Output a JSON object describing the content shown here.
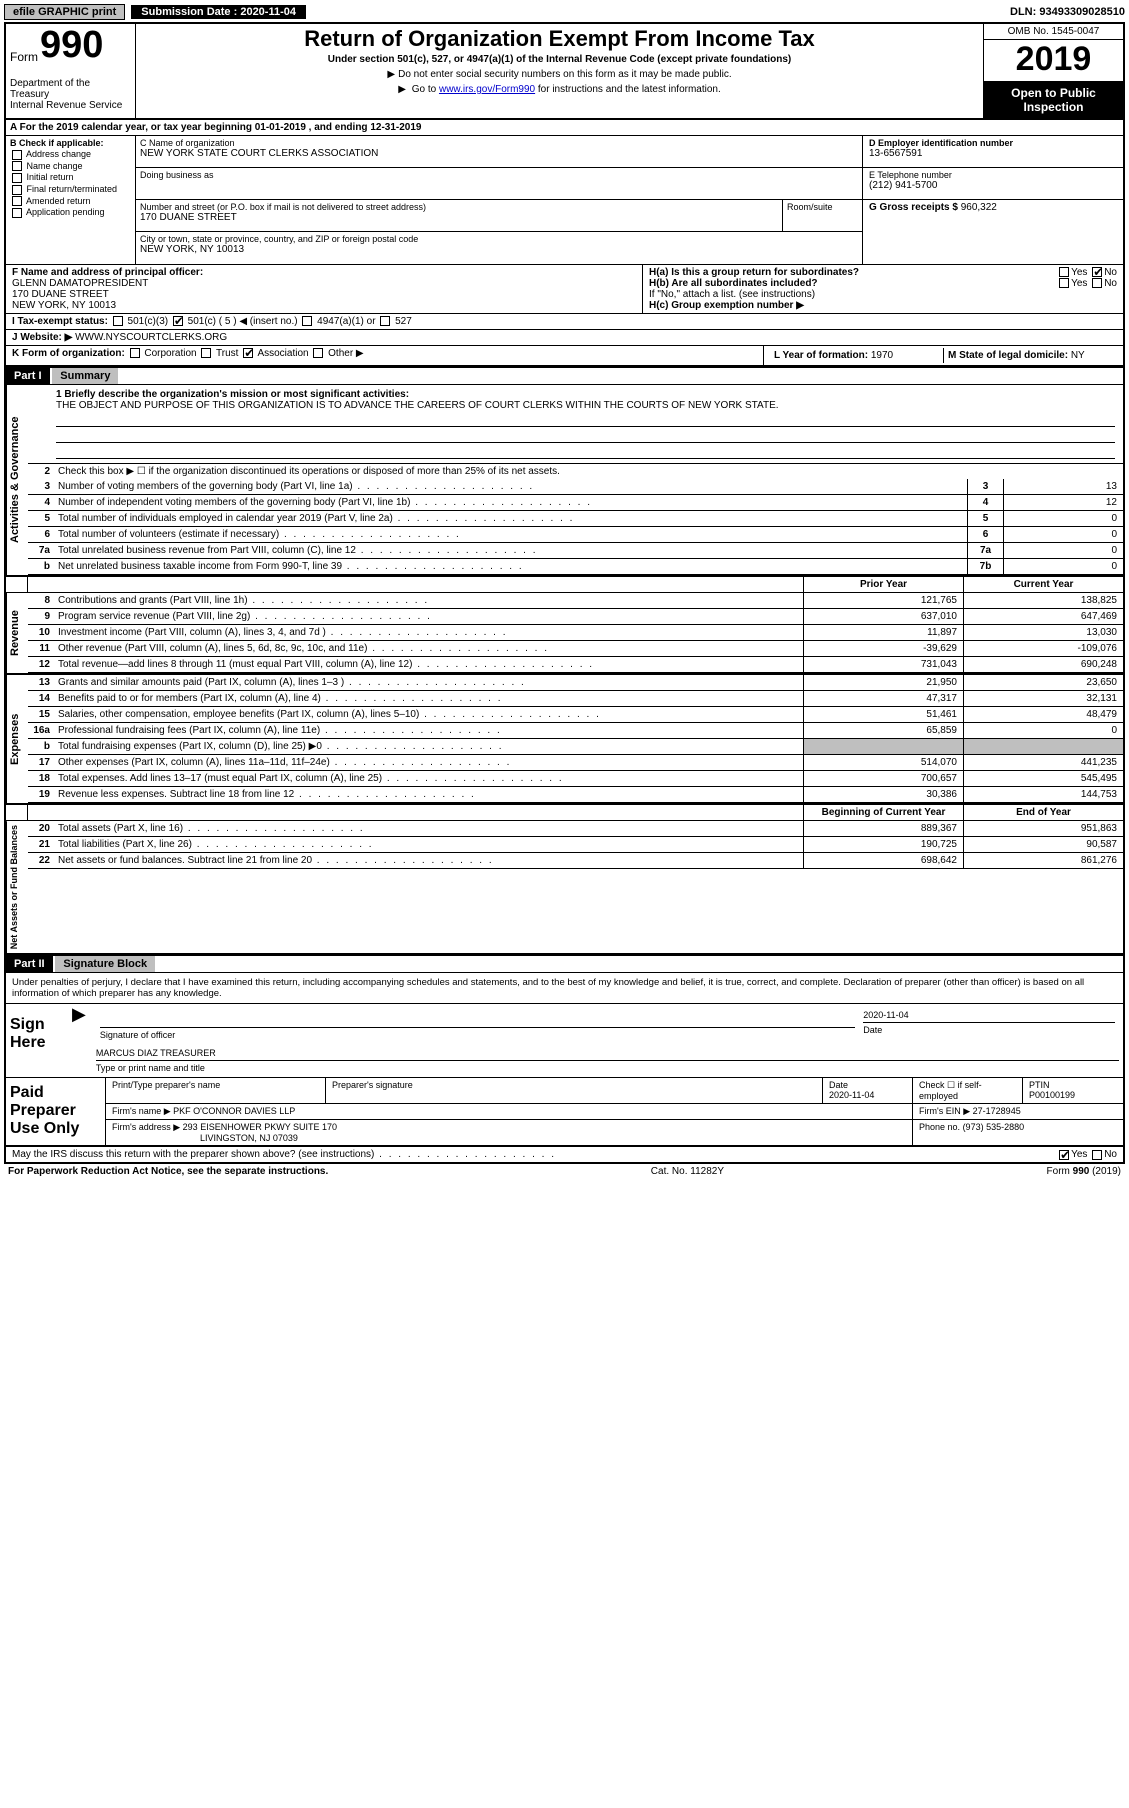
{
  "topbar": {
    "efile": "efile GRAPHIC print",
    "submission_label": "Submission Date :",
    "submission_date": "2020-11-04",
    "dln_label": "DLN:",
    "dln": "93493309028510"
  },
  "header": {
    "form_word": "Form",
    "form_num": "990",
    "dept": "Department of the Treasury\nInternal Revenue Service",
    "title": "Return of Organization Exempt From Income Tax",
    "subtitle": "Under section 501(c), 527, or 4947(a)(1) of the Internal Revenue Code (except private foundations)",
    "instr1": "Do not enter social security numbers on this form as it may be made public.",
    "instr2_pre": "Go to ",
    "instr2_link": "www.irs.gov/Form990",
    "instr2_post": " for instructions and the latest information.",
    "omb": "OMB No. 1545-0047",
    "year": "2019",
    "open_public": "Open to Public Inspection"
  },
  "row_a": "A For the 2019 calendar year, or tax year beginning 01-01-2019   , and ending 12-31-2019",
  "col_b": {
    "header": "B Check if applicable:",
    "items": [
      "Address change",
      "Name change",
      "Initial return",
      "Final return/terminated",
      "Amended return",
      "Application pending"
    ]
  },
  "col_c": {
    "name_label": "C Name of organization",
    "name": "NEW YORK STATE COURT CLERKS ASSOCIATION",
    "dba_label": "Doing business as",
    "dba": "",
    "addr_label": "Number and street (or P.O. box if mail is not delivered to street address)",
    "addr": "170 DUANE STREET",
    "room_label": "Room/suite",
    "room": "",
    "city_label": "City or town, state or province, country, and ZIP or foreign postal code",
    "city": "NEW YORK, NY  10013"
  },
  "col_d": {
    "ein_label": "D Employer identification number",
    "ein": "13-6567591",
    "phone_label": "E Telephone number",
    "phone": "(212) 941-5700",
    "gross_label": "G Gross receipts $",
    "gross": "960,322"
  },
  "row_f": {
    "label": "F  Name and address of principal officer:",
    "name": "GLENN DAMATOPRESIDENT",
    "addr1": "170 DUANE STREET",
    "addr2": "NEW YORK, NY  10013"
  },
  "row_h": {
    "ha": "H(a)  Is this a group return for subordinates?",
    "hb": "H(b)  Are all subordinates included?",
    "hb_note": "If \"No,\" attach a list. (see instructions)",
    "hc": "H(c)  Group exemption number ▶",
    "yes": "Yes",
    "no": "No"
  },
  "row_i": {
    "label": "I  Tax-exempt status:",
    "o1": "501(c)(3)",
    "o2": "501(c) ( 5 ) ◀ (insert no.)",
    "o3": "4947(a)(1) or",
    "o4": "527"
  },
  "row_j": {
    "label": "J  Website: ▶",
    "value": "WWW.NYSCOURTCLERKS.ORG"
  },
  "row_k": {
    "label": "K Form of organization:",
    "o1": "Corporation",
    "o2": "Trust",
    "o3": "Association",
    "o4": "Other ▶",
    "l_label": "L Year of formation:",
    "l_val": "1970",
    "m_label": "M State of legal domicile:",
    "m_val": "NY"
  },
  "part1": {
    "header": "Part I",
    "title": "Summary",
    "vtabs": [
      "Activities & Governance",
      "Revenue",
      "Expenses",
      "Net Assets or Fund Balances"
    ],
    "mission_label": "1  Briefly describe the organization's mission or most significant activities:",
    "mission": "THE OBJECT AND PURPOSE OF THIS ORGANIZATION IS TO ADVANCE THE CAREERS OF COURT CLERKS WITHIN THE COURTS OF NEW YORK STATE.",
    "line2": "Check this box ▶ ☐  if the organization discontinued its operations or disposed of more than 25% of its net assets.",
    "governance_rows": [
      {
        "n": "3",
        "lbl": "Number of voting members of the governing body (Part VI, line 1a)",
        "box": "3",
        "val": "13"
      },
      {
        "n": "4",
        "lbl": "Number of independent voting members of the governing body (Part VI, line 1b)",
        "box": "4",
        "val": "12"
      },
      {
        "n": "5",
        "lbl": "Total number of individuals employed in calendar year 2019 (Part V, line 2a)",
        "box": "5",
        "val": "0"
      },
      {
        "n": "6",
        "lbl": "Total number of volunteers (estimate if necessary)",
        "box": "6",
        "val": "0"
      },
      {
        "n": "7a",
        "lbl": "Total unrelated business revenue from Part VIII, column (C), line 12",
        "box": "7a",
        "val": "0"
      },
      {
        "n": "b",
        "lbl": "Net unrelated business taxable income from Form 990-T, line 39",
        "box": "7b",
        "val": "0"
      }
    ],
    "col_headers": {
      "h1": "Prior Year",
      "h2": "Current Year"
    },
    "revenue_rows": [
      {
        "n": "8",
        "lbl": "Contributions and grants (Part VIII, line 1h)",
        "c1": "121,765",
        "c2": "138,825"
      },
      {
        "n": "9",
        "lbl": "Program service revenue (Part VIII, line 2g)",
        "c1": "637,010",
        "c2": "647,469"
      },
      {
        "n": "10",
        "lbl": "Investment income (Part VIII, column (A), lines 3, 4, and 7d )",
        "c1": "11,897",
        "c2": "13,030"
      },
      {
        "n": "11",
        "lbl": "Other revenue (Part VIII, column (A), lines 5, 6d, 8c, 9c, 10c, and 11e)",
        "c1": "-39,629",
        "c2": "-109,076"
      },
      {
        "n": "12",
        "lbl": "Total revenue—add lines 8 through 11 (must equal Part VIII, column (A), line 12)",
        "c1": "731,043",
        "c2": "690,248"
      }
    ],
    "expense_rows": [
      {
        "n": "13",
        "lbl": "Grants and similar amounts paid (Part IX, column (A), lines 1–3 )",
        "c1": "21,950",
        "c2": "23,650"
      },
      {
        "n": "14",
        "lbl": "Benefits paid to or for members (Part IX, column (A), line 4)",
        "c1": "47,317",
        "c2": "32,131"
      },
      {
        "n": "15",
        "lbl": "Salaries, other compensation, employee benefits (Part IX, column (A), lines 5–10)",
        "c1": "51,461",
        "c2": "48,479"
      },
      {
        "n": "16a",
        "lbl": "Professional fundraising fees (Part IX, column (A), line 11e)",
        "c1": "65,859",
        "c2": "0"
      },
      {
        "n": "b",
        "lbl": "Total fundraising expenses (Part IX, column (D), line 25) ▶0",
        "c1": "",
        "c2": "",
        "shaded": true
      },
      {
        "n": "17",
        "lbl": "Other expenses (Part IX, column (A), lines 11a–11d, 11f–24e)",
        "c1": "514,070",
        "c2": "441,235"
      },
      {
        "n": "18",
        "lbl": "Total expenses. Add lines 13–17 (must equal Part IX, column (A), line 25)",
        "c1": "700,657",
        "c2": "545,495"
      },
      {
        "n": "19",
        "lbl": "Revenue less expenses. Subtract line 18 from line 12",
        "c1": "30,386",
        "c2": "144,753"
      }
    ],
    "net_headers": {
      "h1": "Beginning of Current Year",
      "h2": "End of Year"
    },
    "net_rows": [
      {
        "n": "20",
        "lbl": "Total assets (Part X, line 16)",
        "c1": "889,367",
        "c2": "951,863"
      },
      {
        "n": "21",
        "lbl": "Total liabilities (Part X, line 26)",
        "c1": "190,725",
        "c2": "90,587"
      },
      {
        "n": "22",
        "lbl": "Net assets or fund balances. Subtract line 21 from line 20",
        "c1": "698,642",
        "c2": "861,276"
      }
    ]
  },
  "part2": {
    "header": "Part II",
    "title": "Signature Block",
    "decl": "Under penalties of perjury, I declare that I have examined this return, including accompanying schedules and statements, and to the best of my knowledge and belief, it is true, correct, and complete. Declaration of preparer (other than officer) is based on all information of which preparer has any knowledge.",
    "sign_here": "Sign Here",
    "sig_officer": "Signature of officer",
    "date_label": "Date",
    "date_val": "2020-11-04",
    "name_title": "MARCUS DIAZ  TREASURER",
    "name_title_label": "Type or print name and title",
    "paid": "Paid Preparer Use Only",
    "prep_name_label": "Print/Type preparer's name",
    "prep_sig_label": "Preparer's signature",
    "prep_date_label": "Date",
    "prep_date": "2020-11-04",
    "check_label": "Check ☐ if self-employed",
    "ptin_label": "PTIN",
    "ptin": "P00100199",
    "firm_name_label": "Firm's name    ▶",
    "firm_name": "PKF O'CONNOR DAVIES LLP",
    "firm_ein_label": "Firm's EIN ▶",
    "firm_ein": "27-1728945",
    "firm_addr_label": "Firm's address ▶",
    "firm_addr1": "293 EISENHOWER PKWY SUITE 170",
    "firm_addr2": "LIVINGSTON, NJ  07039",
    "firm_phone_label": "Phone no.",
    "firm_phone": "(973) 535-2880",
    "discuss": "May the IRS discuss this return with the preparer shown above? (see instructions)",
    "yes": "Yes",
    "no": "No"
  },
  "footer": {
    "pra": "For Paperwork Reduction Act Notice, see the separate instructions.",
    "cat": "Cat. No. 11282Y",
    "form": "Form 990 (2019)"
  },
  "colors": {
    "bg": "#ffffff",
    "text": "#000000",
    "link": "#0000cc",
    "gray": "#bfbfbf"
  }
}
